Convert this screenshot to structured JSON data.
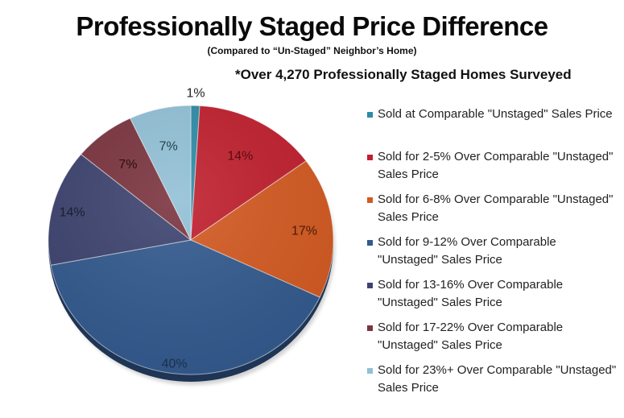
{
  "header": {
    "title": "Professionally Staged Price Difference",
    "subtitle": "(Compared to “Un-Staged” Neighbor’s Home)",
    "note": "*Over 4,270 Professionally Staged Homes Surveyed"
  },
  "legend": {
    "items": [
      {
        "label": "Sold at Comparable \"Unstaged\" Sales Price",
        "color": "#2E8CA6"
      },
      {
        "label": "Sold for 2-5% Over Comparable \"Unstaged\" Sales Price",
        "color": "#C0202E"
      },
      {
        "label": "Sold for 6-8% Over Comparable \"Unstaged\" Sales Price",
        "color": "#D35A22"
      },
      {
        "label": "Sold for 9-12% Over Comparable \"Unstaged\" Sales Price",
        "color": "#335A8E"
      },
      {
        "label": "Sold for 13-16% Over Comparable \"Unstaged\" Sales Price",
        "color": "#3E4470"
      },
      {
        "label": "Sold for 17-22% Over Comparable \"Unstaged\" Sales Price",
        "color": "#7B3540"
      },
      {
        "label": "Sold for 23%+ Over Comparable \"Unstaged\" Sales Price",
        "color": "#92C0D6"
      }
    ]
  },
  "chart_data": {
    "type": "pie",
    "title": "Professionally Staged Price Difference",
    "subtitle": "(Compared to “Un-Staged” Neighbor’s Home)",
    "annotation": "*Over 4,270 Professionally Staged Homes Surveyed",
    "categories": [
      "Sold at Comparable \"Unstaged\" Sales Price",
      "Sold for 2-5% Over Comparable \"Unstaged\" Sales Price",
      "Sold for 6-8% Over Comparable \"Unstaged\" Sales Price",
      "Sold for 9-12% Over Comparable \"Unstaged\" Sales Price",
      "Sold for 13-16% Over Comparable \"Unstaged\" Sales Price",
      "Sold for 17-22% Over Comparable \"Unstaged\" Sales Price",
      "Sold for 23%+ Over Comparable \"Unstaged\" Sales Price"
    ],
    "values": [
      1,
      14,
      17,
      40,
      14,
      7,
      7
    ],
    "labels": [
      "1%",
      "14%",
      "17%",
      "40%",
      "14%",
      "7%",
      "7%"
    ],
    "colors": [
      "#2E8CA6",
      "#C0202E",
      "#D35A22",
      "#335A8E",
      "#3E4470",
      "#7B3540",
      "#92C0D6"
    ],
    "start_angle_deg": 0,
    "direction": "clockwise",
    "legend_position": "right"
  }
}
